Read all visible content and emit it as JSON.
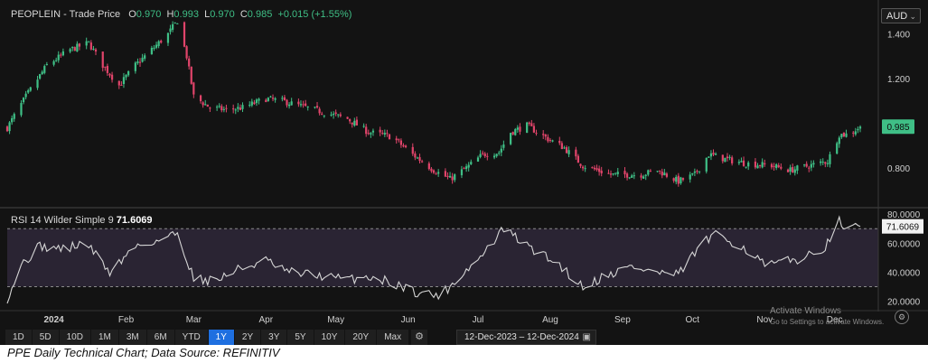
{
  "header": {
    "symbol": "PEOPLEIN",
    "series_label": "- Trade Price",
    "o_label": "O",
    "o_value": "0.970",
    "h_label": "H",
    "h_value": "0.993",
    "l_label": "L",
    "l_value": "0.970",
    "c_label": "C",
    "c_value": "0.985",
    "change": "+0.015 (+1.55%)"
  },
  "currency": "AUD",
  "rsi_header": {
    "label": "RSI 14 Wilder Simple 9",
    "value": "71.6069"
  },
  "toolbar": {
    "ranges": [
      "1D",
      "5D",
      "10D",
      "1M",
      "3M",
      "6M",
      "YTD",
      "1Y",
      "2Y",
      "3Y",
      "5Y",
      "10Y",
      "20Y",
      "Max"
    ],
    "active": "1Y"
  },
  "date_range": {
    "start": "12-Dec-2023",
    "separator": "–",
    "end": "12-Dec-2024"
  },
  "watermark": {
    "line1": "Activate Windows",
    "line2": "Go to Settings to activate Windows."
  },
  "caption": "PPE Daily Technical Chart; Data Source: REFINITIV",
  "colors": {
    "up": "#3fbf86",
    "down": "#e0446a",
    "rsi_line": "#d6d6d6",
    "rsi_band": "#2a2433",
    "badge": "#3fbf86"
  },
  "chart_data": [
    {
      "type": "candlestick",
      "title": "PEOPLEIN - Trade Price",
      "ylim": [
        0.63,
        1.52
      ],
      "yticks": [
        1.4,
        1.2,
        1.0,
        0.8
      ],
      "ytick_labels": [
        "1.400",
        "1.200",
        "",
        "0.800"
      ],
      "last_price_label": "0.985",
      "last_price": 0.985,
      "x_labels": [
        "2024",
        "Feb",
        "Mar",
        "Apr",
        "May",
        "Jun",
        "Jul",
        "Aug",
        "Sep",
        "Oct",
        "Nov",
        "Dec"
      ],
      "x_label_dates": [
        "2024-01-01",
        "2024-02-01",
        "2024-03-01",
        "2024-04-01",
        "2024-05-01",
        "2024-06-01",
        "2024-07-01",
        "2024-08-01",
        "2024-09-01",
        "2024-10-01",
        "2024-11-01",
        "2024-12-01"
      ],
      "date_range": [
        "2023-12-12",
        "2024-12-12"
      ],
      "close_waypoints": [
        [
          "2023-12-12",
          0.98
        ],
        [
          "2023-12-20",
          1.12
        ],
        [
          "2023-12-29",
          1.26
        ],
        [
          "2024-01-08",
          1.33
        ],
        [
          "2024-01-16",
          1.36
        ],
        [
          "2024-01-22",
          1.26
        ],
        [
          "2024-01-29",
          1.17
        ],
        [
          "2024-02-05",
          1.26
        ],
        [
          "2024-02-12",
          1.33
        ],
        [
          "2024-02-19",
          1.4
        ],
        [
          "2024-02-23",
          1.46
        ],
        [
          "2024-02-27",
          1.3
        ],
        [
          "2024-03-01",
          1.12
        ],
        [
          "2024-03-08",
          1.07
        ],
        [
          "2024-03-15",
          1.06
        ],
        [
          "2024-03-22",
          1.07
        ],
        [
          "2024-04-01",
          1.11
        ],
        [
          "2024-04-08",
          1.1
        ],
        [
          "2024-04-22",
          1.06
        ],
        [
          "2024-05-06",
          1.02
        ],
        [
          "2024-05-15",
          0.96
        ],
        [
          "2024-05-25",
          0.94
        ],
        [
          "2024-06-03",
          0.86
        ],
        [
          "2024-06-12",
          0.79
        ],
        [
          "2024-06-19",
          0.75
        ],
        [
          "2024-06-26",
          0.8
        ],
        [
          "2024-07-03",
          0.86
        ],
        [
          "2024-07-10",
          0.87
        ],
        [
          "2024-07-15",
          0.96
        ],
        [
          "2024-07-22",
          0.99
        ],
        [
          "2024-07-31",
          0.93
        ],
        [
          "2024-08-07",
          0.89
        ],
        [
          "2024-08-15",
          0.81
        ],
        [
          "2024-08-27",
          0.77
        ],
        [
          "2024-09-09",
          0.77
        ],
        [
          "2024-09-16",
          0.79
        ],
        [
          "2024-09-25",
          0.74
        ],
        [
          "2024-10-02",
          0.77
        ],
        [
          "2024-10-08",
          0.86
        ],
        [
          "2024-10-15",
          0.84
        ],
        [
          "2024-10-24",
          0.82
        ],
        [
          "2024-11-04",
          0.81
        ],
        [
          "2024-11-12",
          0.79
        ],
        [
          "2024-11-20",
          0.81
        ],
        [
          "2024-11-28",
          0.83
        ],
        [
          "2024-12-03",
          0.95
        ],
        [
          "2024-12-07",
          0.95
        ],
        [
          "2024-12-12",
          0.985
        ]
      ]
    },
    {
      "type": "line",
      "title": "RSI 14 Wilder Simple 9",
      "ylim": [
        16,
        82
      ],
      "yticks": [
        80,
        60,
        40,
        20
      ],
      "ytick_labels": [
        "80.0000",
        "60.0000",
        "40.0000",
        "20.0000"
      ],
      "overbought": 70,
      "oversold": 30,
      "last_value_label": "71.6069",
      "last_value": 71.6069,
      "rsi_waypoints": [
        [
          "2023-12-12",
          22
        ],
        [
          "2023-12-18",
          45
        ],
        [
          "2023-12-26",
          58
        ],
        [
          "2024-01-05",
          56
        ],
        [
          "2024-01-15",
          60
        ],
        [
          "2024-01-25",
          40
        ],
        [
          "2024-02-05",
          58
        ],
        [
          "2024-02-15",
          62
        ],
        [
          "2024-02-23",
          67
        ],
        [
          "2024-03-01",
          36
        ],
        [
          "2024-03-10",
          34
        ],
        [
          "2024-03-20",
          42
        ],
        [
          "2024-04-01",
          48
        ],
        [
          "2024-04-10",
          40
        ],
        [
          "2024-04-22",
          38
        ],
        [
          "2024-05-06",
          35
        ],
        [
          "2024-05-15",
          37
        ],
        [
          "2024-05-25",
          33
        ],
        [
          "2024-06-05",
          26
        ],
        [
          "2024-06-15",
          24
        ],
        [
          "2024-06-25",
          40
        ],
        [
          "2024-07-02",
          50
        ],
        [
          "2024-07-12",
          70
        ],
        [
          "2024-07-22",
          58
        ],
        [
          "2024-08-05",
          45
        ],
        [
          "2024-08-15",
          30
        ],
        [
          "2024-08-25",
          38
        ],
        [
          "2024-09-05",
          44
        ],
        [
          "2024-09-15",
          40
        ],
        [
          "2024-09-25",
          38
        ],
        [
          "2024-10-05",
          60
        ],
        [
          "2024-10-12",
          66
        ],
        [
          "2024-10-22",
          58
        ],
        [
          "2024-11-02",
          44
        ],
        [
          "2024-11-12",
          48
        ],
        [
          "2024-11-22",
          52
        ],
        [
          "2024-11-30",
          62
        ],
        [
          "2024-12-03",
          75
        ],
        [
          "2024-12-08",
          69
        ],
        [
          "2024-12-12",
          71.6069
        ]
      ]
    }
  ]
}
